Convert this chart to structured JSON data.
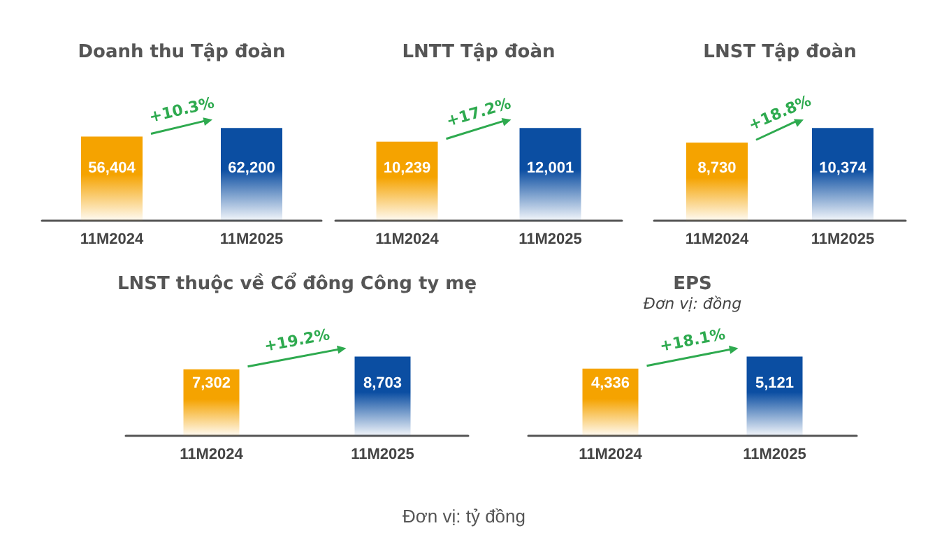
{
  "chart_data": [
    {
      "type": "bar",
      "title": "Doanh thu Tập đoàn",
      "categories": [
        "11M2024",
        "11M2025"
      ],
      "values": [
        56404,
        62200
      ],
      "value_labels": [
        "56,404",
        "62,200"
      ],
      "colors": [
        "#f5a300",
        "#0b4ea2"
      ],
      "annotations": [
        "+10.3%"
      ]
    },
    {
      "type": "bar",
      "title": "LNTT Tập đoàn",
      "categories": [
        "11M2024",
        "11M2025"
      ],
      "values": [
        10239,
        12001
      ],
      "value_labels": [
        "10,239",
        "12,001"
      ],
      "colors": [
        "#f5a300",
        "#0b4ea2"
      ],
      "annotations": [
        "+17.2%"
      ]
    },
    {
      "type": "bar",
      "title": "LNST Tập đoàn",
      "categories": [
        "11M2024",
        "11M2025"
      ],
      "values": [
        8730,
        10374
      ],
      "value_labels": [
        "8,730",
        "10,374"
      ],
      "colors": [
        "#f5a300",
        "#0b4ea2"
      ],
      "annotations": [
        "+18.8%"
      ]
    },
    {
      "type": "bar",
      "title": "LNST thuộc về Cổ đông Công ty mẹ",
      "categories": [
        "11M2024",
        "11M2025"
      ],
      "values": [
        7302,
        8703
      ],
      "value_labels": [
        "7,302",
        "8,703"
      ],
      "colors": [
        "#f5a300",
        "#0b4ea2"
      ],
      "annotations": [
        "+19.2%"
      ]
    },
    {
      "type": "bar",
      "title": "EPS",
      "subtitle": "Đơn vị: đồng",
      "categories": [
        "11M2024",
        "11M2025"
      ],
      "values": [
        4336,
        5121
      ],
      "value_labels": [
        "4,336",
        "5,121"
      ],
      "colors": [
        "#f5a300",
        "#0b4ea2"
      ],
      "annotations": [
        "+18.1%"
      ]
    },
    {
      "type": "other",
      "annotations": [
        "Đơn vị: tỷ đồng"
      ]
    }
  ]
}
